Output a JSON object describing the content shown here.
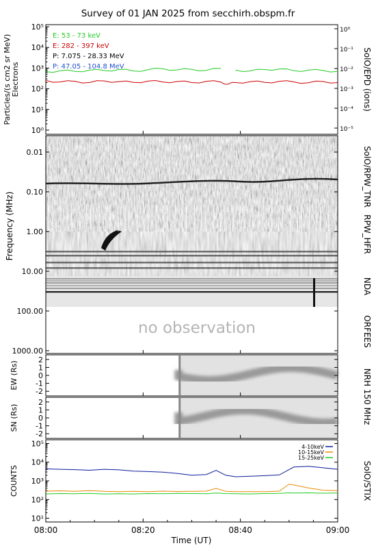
{
  "title": "Survey of 01 JAN 2025 from secchirh.obspm.fr",
  "xaxis": {
    "label": "Time (UT)",
    "ticks": [
      "08:00",
      "08:20",
      "08:40",
      "09:00"
    ],
    "tick_minutes": [
      0,
      20,
      40,
      60
    ],
    "range_minutes": [
      0,
      60
    ]
  },
  "panels": {
    "epd": {
      "right_label": "SolO/EPD (ions)",
      "ylabel_line1": "Particles/(s cm2 sr MeV)",
      "ylabel_line2": "Electrons",
      "left_ticks": [
        "10⁰",
        "10¹",
        "10²",
        "10³",
        "10⁴",
        "10⁵"
      ],
      "right_ticks": [
        "10⁻⁵",
        "10⁻⁴",
        "10⁻³",
        "10⁻²",
        "10⁻¹",
        "10⁰"
      ],
      "legend": [
        {
          "text": "E: 53 - 73 keV",
          "color": "#22cc22"
        },
        {
          "text": "E: 282 - 397 keV",
          "color": "#cc0000"
        },
        {
          "text": "P: 7.075 - 28.33 MeV",
          "color": "#000000"
        },
        {
          "text": "P: 47.05 - 104.8 MeV",
          "color": "#1f4fd0"
        }
      ]
    },
    "radio": {
      "ylabel": "Frequency (MHz)",
      "ticks": [
        "0.01",
        "0.10",
        "1.00",
        "10.00",
        "100.00",
        "1000.00"
      ],
      "labels": [
        {
          "text": "SolO/RPW_TNR"
        },
        {
          "text": "RPW_HFR"
        },
        {
          "text": "NDA"
        },
        {
          "text": "ORFEES"
        }
      ],
      "no_observation": "no observation"
    },
    "nrh": {
      "right_label": "NRH 150 MHz",
      "ew_label": "EW (Rs)",
      "sn_label": "SN (Rs)",
      "ticks": [
        "2",
        "1",
        "0",
        "-1",
        "-2"
      ],
      "tick_values": [
        2,
        1,
        0,
        -1,
        -2
      ],
      "data_start_minutes": 27.3
    },
    "stix": {
      "right_label": "SolO/STIX",
      "ylabel": "COUNTS",
      "ticks": [
        "10¹",
        "10²",
        "10³",
        "10⁴",
        "10⁵"
      ],
      "legend": [
        {
          "text": "4-10keV",
          "color": "#0a1a9a"
        },
        {
          "text": "10-15keV",
          "color": "#e88a00"
        },
        {
          "text": "15-25keV",
          "color": "#22cc22"
        }
      ]
    }
  },
  "chart_data": [
    {
      "type": "line",
      "panel": "SolO/EPD",
      "log_y": true,
      "ylim_log10": [
        -0.2,
        5.1
      ],
      "x_minutes": [
        0,
        3,
        6,
        9,
        12,
        15,
        18,
        21,
        24,
        27,
        30,
        33,
        36,
        37.5,
        39,
        42,
        45,
        48,
        51,
        54,
        57,
        60
      ],
      "series": [
        {
          "name": "E: 53 - 73 keV",
          "color": "#22cc22",
          "values_log10": [
            2.82,
            2.87,
            2.84,
            2.9,
            2.88,
            2.93,
            2.86,
            2.92,
            2.97,
            2.91,
            2.94,
            2.89,
            2.98,
            null,
            2.9,
            2.86,
            2.93,
            2.96,
            2.87,
            2.9,
            2.88,
            2.84
          ]
        },
        {
          "name": "E: 282 - 397 keV",
          "color": "#cc0000",
          "values_log10": [
            2.4,
            2.33,
            2.36,
            2.3,
            2.38,
            2.34,
            2.31,
            2.37,
            2.33,
            2.35,
            2.3,
            2.36,
            2.32,
            2.22,
            2.3,
            2.34,
            2.31,
            2.36,
            2.33,
            2.29,
            2.35,
            2.3
          ]
        }
      ]
    },
    {
      "type": "heatmap",
      "panel": "Radio spectrogram",
      "log_y": true,
      "ylim_mhz": [
        0.004,
        1000
      ]
    },
    {
      "type": "heatmap",
      "panel": "NRH 150 MHz",
      "ylim": [
        -2.5,
        2.5
      ]
    },
    {
      "type": "line",
      "panel": "SolO/STIX",
      "log_y": true,
      "ylim_log10": [
        0.8,
        5.2
      ],
      "x_minutes": [
        0,
        3,
        6,
        9,
        12,
        15,
        18,
        21,
        24,
        27,
        30,
        33,
        35,
        37,
        39,
        42,
        45,
        48,
        50,
        51,
        54,
        57,
        60
      ],
      "series": [
        {
          "name": "4-10keV",
          "color": "#0a1a9a",
          "values_log10": [
            3.64,
            3.62,
            3.6,
            3.57,
            3.62,
            3.59,
            3.52,
            3.5,
            3.47,
            3.4,
            3.3,
            3.34,
            3.56,
            3.3,
            3.22,
            3.25,
            3.28,
            3.32,
            3.6,
            3.74,
            3.78,
            3.7,
            3.62
          ]
        },
        {
          "name": "10-15keV",
          "color": "#e88a00",
          "values_log10": [
            2.45,
            2.47,
            2.44,
            2.48,
            2.44,
            2.42,
            2.44,
            2.42,
            2.45,
            2.43,
            2.44,
            2.45,
            2.6,
            2.44,
            2.42,
            2.42,
            2.42,
            2.45,
            2.82,
            2.78,
            2.62,
            2.5,
            2.48
          ]
        },
        {
          "name": "15-25keV",
          "color": "#22cc22",
          "values_log10": [
            2.3,
            2.32,
            2.31,
            2.33,
            2.3,
            2.31,
            2.3,
            2.32,
            2.31,
            2.33,
            2.32,
            2.31,
            2.35,
            2.32,
            2.31,
            2.3,
            2.32,
            2.33,
            2.36,
            2.35,
            2.36,
            2.34,
            2.35
          ]
        }
      ]
    }
  ]
}
